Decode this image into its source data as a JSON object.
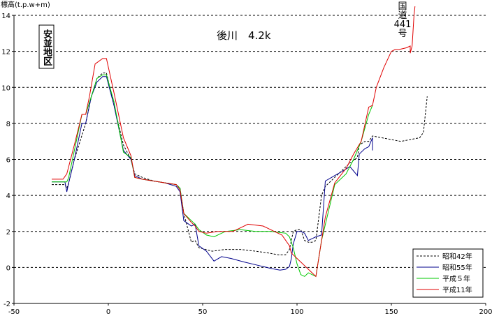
{
  "chart_data": {
    "type": "line",
    "title": "後川　4.2k",
    "ylabel": "標高(t.p.w+m)",
    "xlabel": "",
    "xlim": [
      -50,
      200
    ],
    "ylim": [
      -2,
      14
    ],
    "xticks": [
      -50,
      0,
      50,
      100,
      150,
      200
    ],
    "yticks": [
      -2,
      0,
      2,
      4,
      6,
      8,
      10,
      12,
      14
    ],
    "grid": "horizontal dashed",
    "legend_position": "bottom-right",
    "annotations": {
      "district": "安並地区",
      "road": [
        "国",
        "道",
        "441",
        "号"
      ]
    },
    "series": [
      {
        "name": "昭和42年",
        "color": "#000000",
        "dash": "3 2",
        "x": [
          -30,
          -23,
          -22,
          -21,
          -18,
          -12,
          -9,
          -6,
          -3,
          -1,
          3,
          8,
          12,
          14,
          18,
          24,
          30,
          36,
          38,
          40,
          42,
          44,
          46,
          48,
          55,
          62,
          70,
          78,
          85,
          90,
          94,
          96,
          98,
          100,
          102,
          104,
          106,
          108,
          110,
          113,
          115,
          120,
          125,
          128,
          132,
          133,
          136,
          138,
          140,
          145,
          150,
          155,
          160,
          165,
          167,
          169
        ],
        "y": [
          4.6,
          4.6,
          4.4,
          4.7,
          6,
          8,
          9.5,
          10.5,
          10.8,
          10.8,
          9,
          6.8,
          6,
          5.2,
          5,
          4.8,
          4.7,
          4.6,
          4.4,
          3,
          2.2,
          1.4,
          1.5,
          1.1,
          0.9,
          1,
          1,
          0.9,
          0.8,
          0.7,
          0.7,
          1,
          2,
          2.1,
          2.1,
          1.5,
          1.4,
          1.4,
          1.5,
          4,
          4.5,
          5,
          5.5,
          5.8,
          6.1,
          6.8,
          7,
          7,
          7.3,
          7.2,
          7.1,
          7,
          7.1,
          7.2,
          7.5,
          9.5
        ]
      },
      {
        "name": "昭和55年",
        "color": "#00008b",
        "dash": "",
        "x": [
          -30,
          -23,
          -22,
          -21,
          -18,
          -14,
          -12,
          -9,
          -6,
          -3,
          -1,
          3,
          8,
          12,
          14,
          18,
          24,
          30,
          36,
          38,
          40,
          44,
          46,
          48,
          52,
          56,
          60,
          65,
          72,
          80,
          86,
          91,
          94,
          96,
          97,
          98,
          100,
          102,
          104,
          106,
          108,
          110,
          113,
          115,
          120,
          125,
          128,
          132,
          133,
          136,
          138,
          140,
          140
        ],
        "y": [
          4.75,
          4.75,
          4.2,
          4.7,
          6,
          8,
          8,
          9.5,
          10.3,
          10.6,
          10.6,
          9,
          6.5,
          6,
          5.1,
          4.9,
          4.8,
          4.7,
          4.5,
          4.2,
          2.6,
          2.3,
          2.4,
          1.2,
          0.9,
          0.35,
          0.6,
          0.5,
          0.3,
          0.1,
          -0.05,
          -0.15,
          -0.1,
          0.05,
          0.5,
          1.3,
          2,
          2,
          1.9,
          1.5,
          1.6,
          1.7,
          1.8,
          4.8,
          5.1,
          5.4,
          5.6,
          5.1,
          6.3,
          6.6,
          6.7,
          7.2,
          6.5
        ]
      },
      {
        "name": "平成５年",
        "color": "#00c800",
        "dash": "",
        "x": [
          -30,
          -23,
          -22,
          -21,
          -18,
          -14,
          -12,
          -9,
          -6,
          -3,
          -1,
          3,
          8,
          12,
          14,
          18,
          24,
          30,
          36,
          38,
          40,
          44,
          46,
          48,
          52,
          56,
          62,
          70,
          78,
          86,
          90,
          94,
          96,
          98,
          100,
          102,
          104,
          106,
          110,
          113,
          120,
          126,
          130,
          134,
          138,
          140
        ],
        "y": [
          4.75,
          4.75,
          4.75,
          5,
          6.5,
          8.5,
          8.5,
          9.5,
          10.5,
          10.7,
          10.7,
          9.2,
          6.4,
          6.1,
          5,
          4.9,
          4.8,
          4.7,
          4.6,
          4.4,
          3,
          2.6,
          2.4,
          2.1,
          1.8,
          1.7,
          2,
          2.1,
          2,
          2,
          1.95,
          1.9,
          1.7,
          1.1,
          0.2,
          -0.4,
          -0.5,
          -0.3,
          -0.5,
          1.5,
          4.6,
          5.2,
          6,
          7,
          8.5,
          9
        ]
      },
      {
        "name": "平成11年",
        "color": "#e00000",
        "dash": "",
        "x": [
          -30,
          -24,
          -22,
          -18,
          -14,
          -12,
          -10,
          -7,
          -3,
          -1,
          3,
          8,
          12,
          14,
          18,
          24,
          30,
          36,
          38,
          40,
          44,
          46,
          48,
          52,
          58,
          66,
          74,
          82,
          88,
          92,
          96,
          97,
          98,
          100,
          102,
          104,
          106,
          108,
          110,
          113,
          115,
          120,
          126,
          130,
          134,
          138,
          140,
          142,
          146,
          150,
          152,
          154,
          158,
          160,
          160,
          161,
          162,
          162.5
        ],
        "y": [
          4.9,
          4.9,
          5.2,
          6.8,
          8.5,
          8.5,
          9.5,
          11.3,
          11.6,
          11.6,
          9.7,
          7.2,
          6.2,
          5,
          4.9,
          4.8,
          4.7,
          4.6,
          4.3,
          3,
          2.5,
          2.3,
          2,
          1.9,
          2,
          2,
          2.4,
          2.3,
          2,
          1.8,
          1.2,
          0.8,
          0.7,
          0.5,
          0.3,
          0.1,
          -0.1,
          -0.3,
          -0.5,
          1.5,
          2.8,
          4.7,
          5.5,
          6.3,
          7,
          8.9,
          9,
          10,
          11.1,
          12,
          12.1,
          12.1,
          12.2,
          12.3,
          11.9,
          12.3,
          14,
          14.5
        ]
      }
    ]
  }
}
